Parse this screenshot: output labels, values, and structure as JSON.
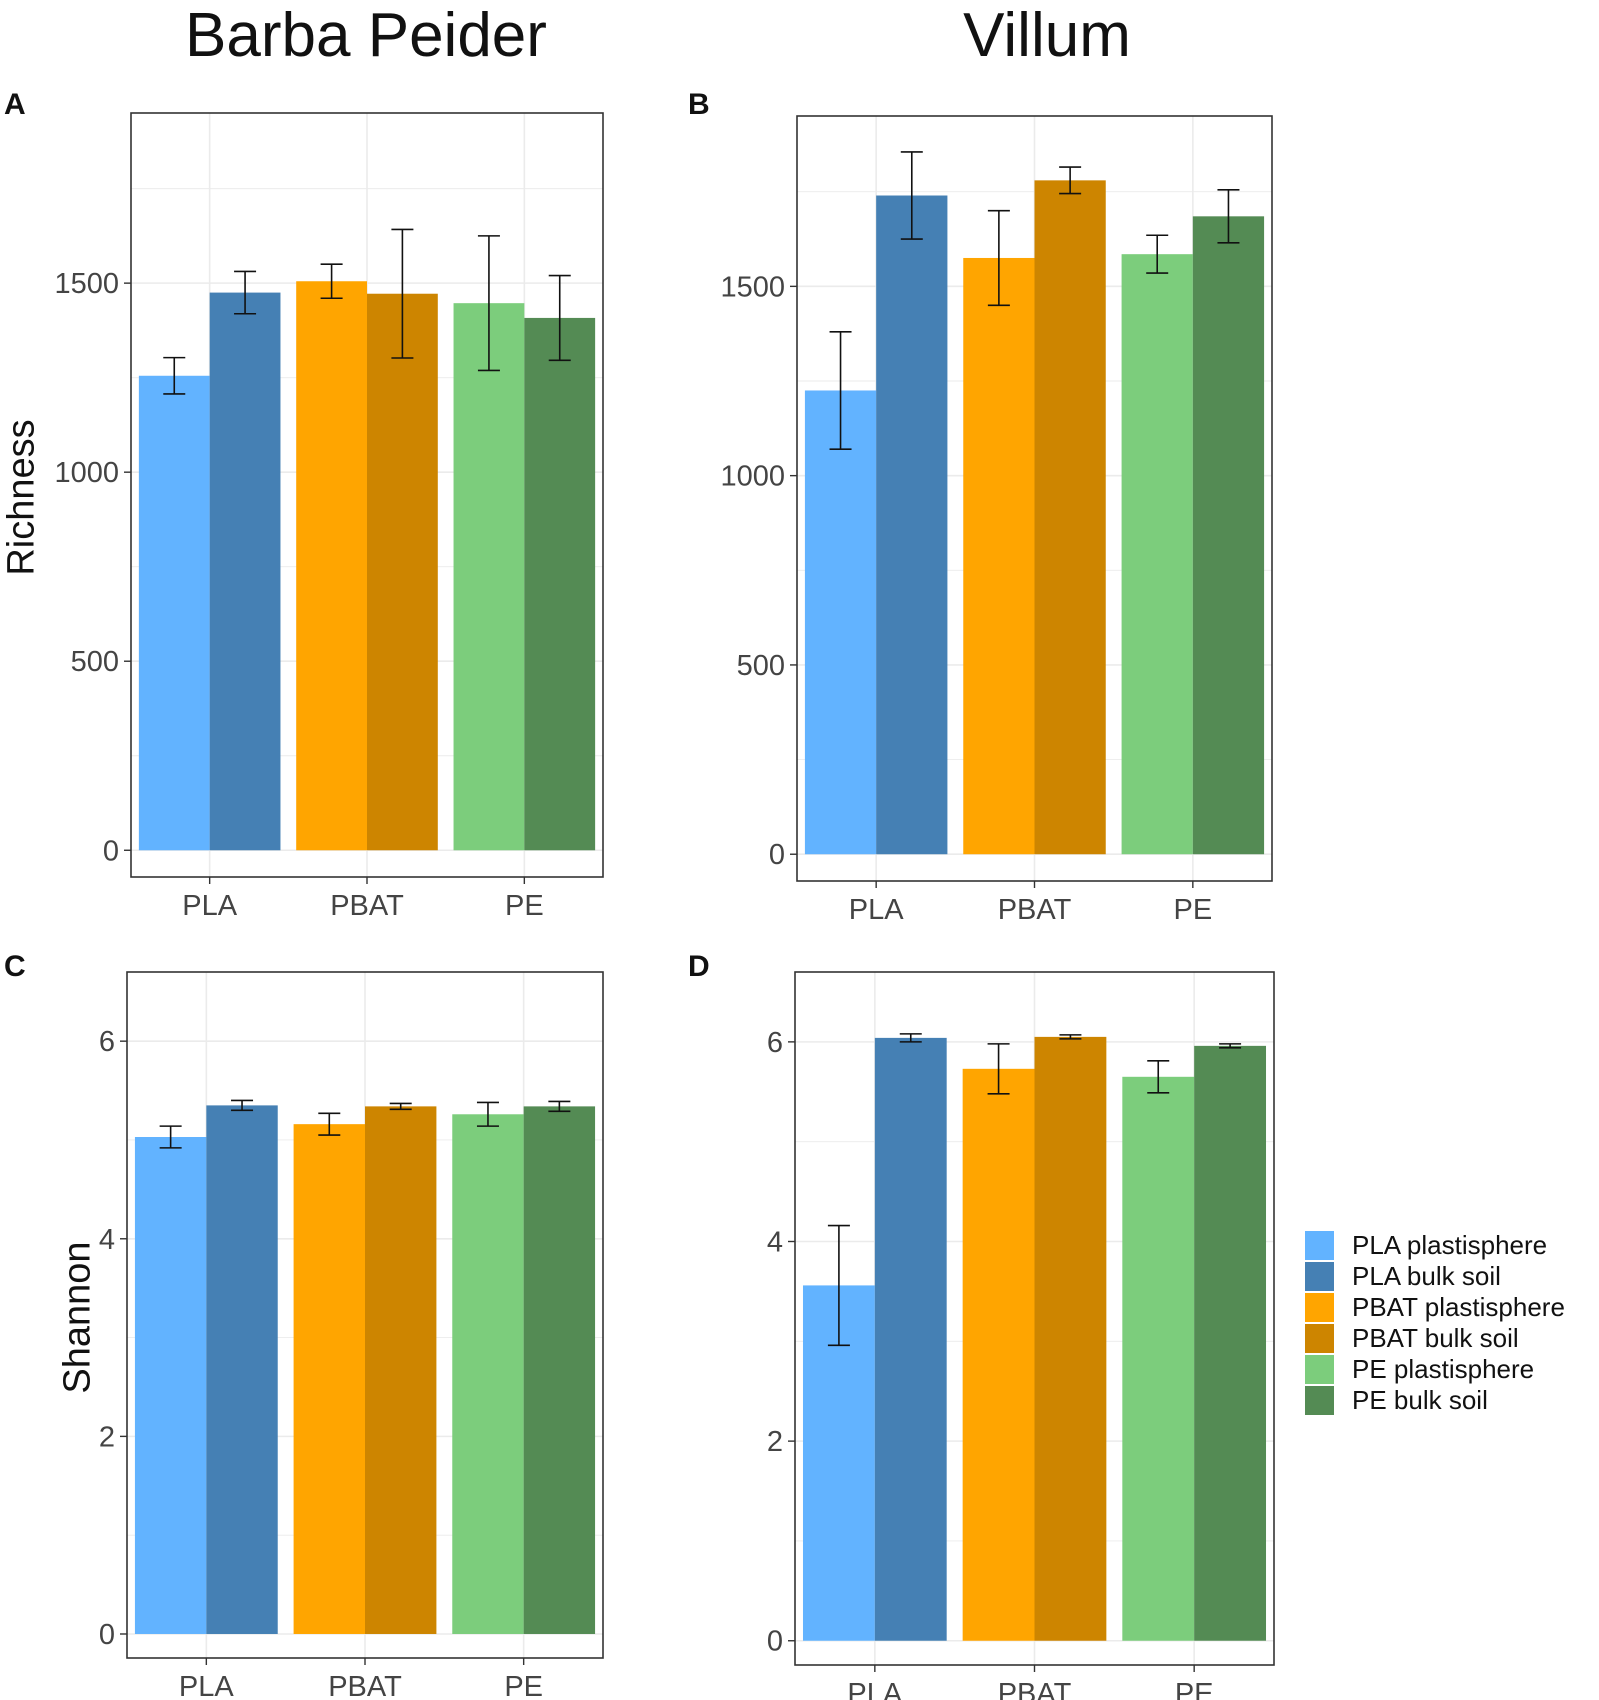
{
  "titles": {
    "left": "Barba Peider",
    "right": "Villum"
  },
  "axis_labels": {
    "richness": "Richness",
    "shannon": "Shannon"
  },
  "panel_labels": [
    "A",
    "B",
    "C",
    "D"
  ],
  "legend": {
    "items": [
      {
        "label": "PLA plastisphere",
        "color": "#62b3ff"
      },
      {
        "label": "PLA bulk soil",
        "color": "#4580b4"
      },
      {
        "label": "PBAT plastisphere",
        "color": "#ffa500"
      },
      {
        "label": "PBAT bulk soil",
        "color": "#cd8500"
      },
      {
        "label": "PE plastisphere",
        "color": "#7ccd7c"
      },
      {
        "label": "PE bulk soil",
        "color": "#548b54"
      }
    ]
  },
  "chart_data": [
    {
      "panel": "A",
      "type": "bar",
      "title": "Barba Peider",
      "xlabel": "",
      "ylabel": "Richness",
      "categories": [
        "PLA",
        "PBAT",
        "PE"
      ],
      "ylim": [
        0,
        1950
      ],
      "yticks": [
        0,
        500,
        1000,
        1500
      ],
      "series": [
        {
          "name": "plastisphere",
          "values": [
            1255,
            1505,
            1447
          ],
          "errors": [
            48,
            45,
            178
          ]
        },
        {
          "name": "bulk soil",
          "values": [
            1475,
            1472,
            1408
          ],
          "errors": [
            56,
            170,
            112
          ]
        }
      ]
    },
    {
      "panel": "B",
      "type": "bar",
      "title": "Villum",
      "xlabel": "",
      "ylabel": "",
      "categories": [
        "PLA",
        "PBAT",
        "PE"
      ],
      "ylim": [
        0,
        1950
      ],
      "yticks": [
        0,
        500,
        1000,
        1500
      ],
      "series": [
        {
          "name": "plastisphere",
          "values": [
            1225,
            1575,
            1585
          ],
          "errors": [
            155,
            125,
            50
          ]
        },
        {
          "name": "bulk soil",
          "values": [
            1740,
            1780,
            1685
          ],
          "errors": [
            115,
            35,
            70
          ]
        }
      ]
    },
    {
      "panel": "C",
      "type": "bar",
      "title": "",
      "xlabel": "",
      "ylabel": "Shannon",
      "categories": [
        "PLA",
        "PBAT",
        "PE"
      ],
      "ylim": [
        0,
        6.7
      ],
      "yticks": [
        0,
        2,
        4,
        6
      ],
      "series": [
        {
          "name": "plastisphere",
          "values": [
            5.03,
            5.16,
            5.26
          ],
          "errors": [
            0.11,
            0.11,
            0.12
          ]
        },
        {
          "name": "bulk soil",
          "values": [
            5.35,
            5.34,
            5.34
          ],
          "errors": [
            0.05,
            0.03,
            0.05
          ]
        }
      ]
    },
    {
      "panel": "D",
      "type": "bar",
      "title": "",
      "xlabel": "",
      "ylabel": "",
      "categories": [
        "PLA",
        "PBAT",
        "PE"
      ],
      "ylim": [
        0,
        6.7
      ],
      "yticks": [
        0,
        2,
        4,
        6
      ],
      "series": [
        {
          "name": "plastisphere",
          "values": [
            3.56,
            5.73,
            5.65
          ],
          "errors": [
            0.6,
            0.25,
            0.16
          ]
        },
        {
          "name": "bulk soil",
          "values": [
            6.04,
            6.05,
            5.96
          ],
          "errors": [
            0.04,
            0.02,
            0.02
          ]
        }
      ]
    }
  ]
}
